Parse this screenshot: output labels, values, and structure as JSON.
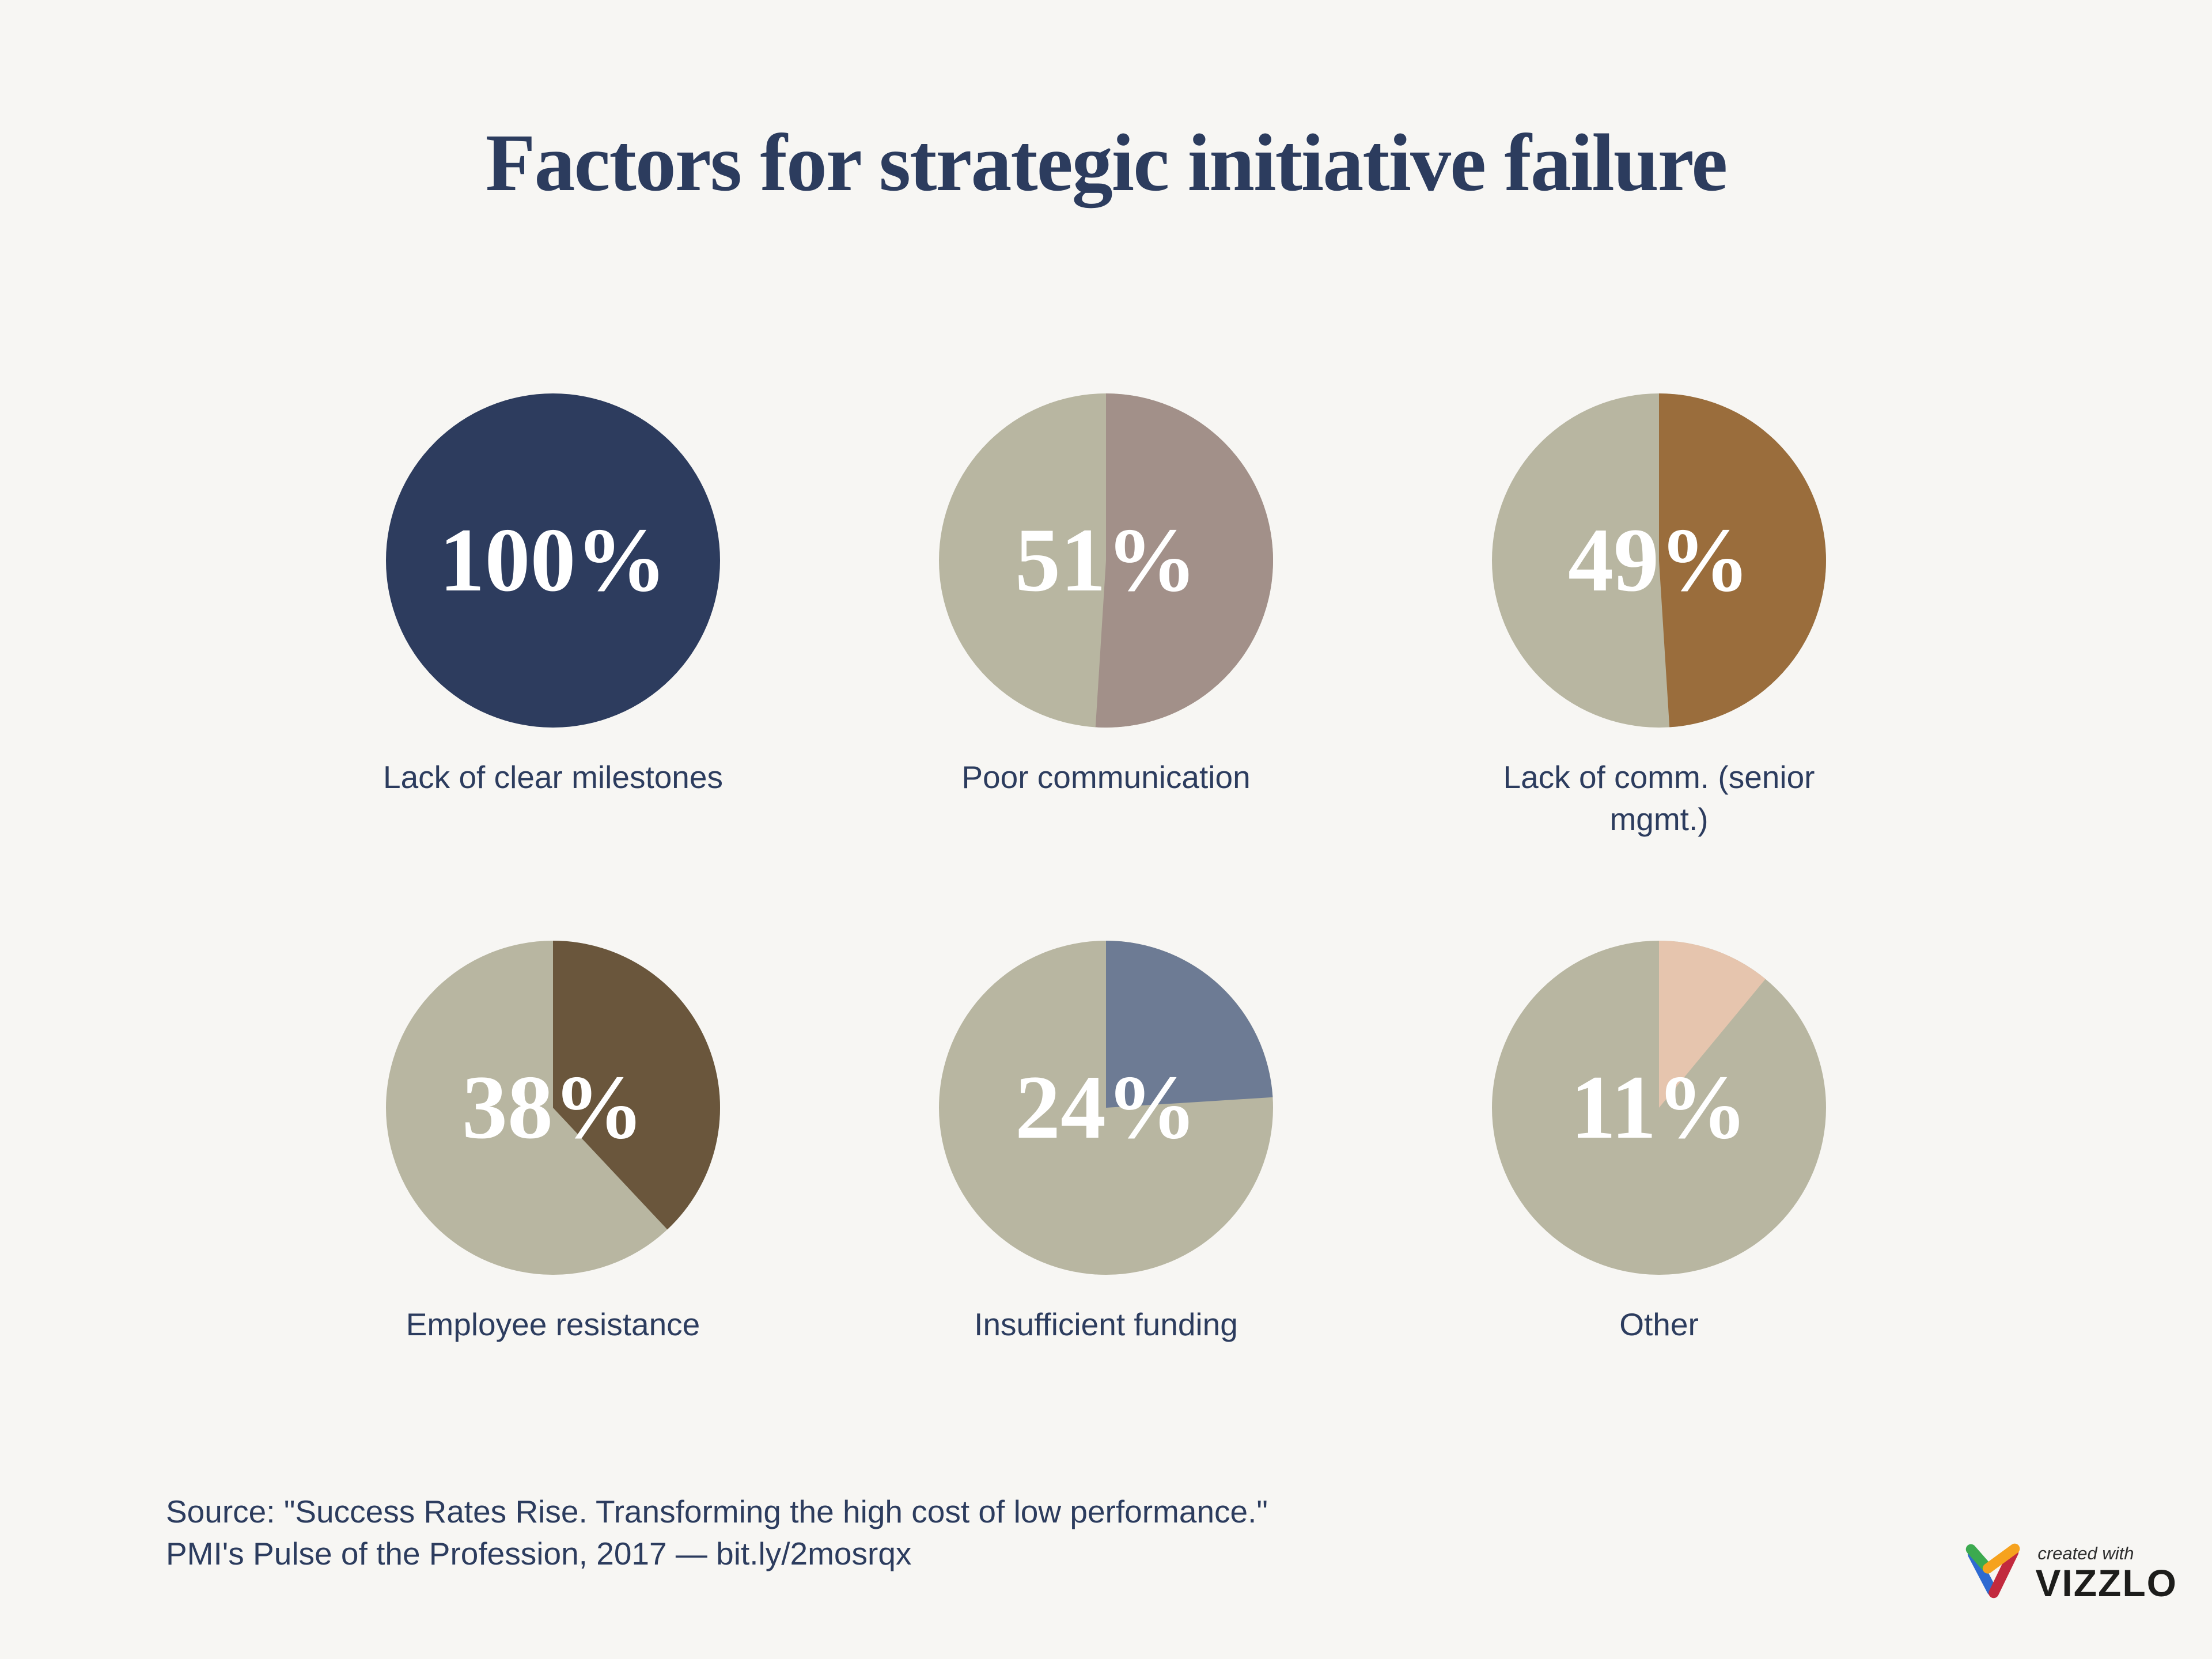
{
  "title": "Factors for strategic initiative failure",
  "chart_data": {
    "type": "pie",
    "layout": {
      "rows": 2,
      "cols": 3,
      "legend": "none",
      "labels_inside": true
    },
    "remainder_color": "#b8b6a1",
    "value_suffix": "%",
    "items": [
      {
        "category": "Lack of clear milestones",
        "value": 100,
        "label": "100%",
        "color": "#2d3c5e"
      },
      {
        "category": "Poor communication",
        "value": 51,
        "label": "51%",
        "color": "#a29089"
      },
      {
        "category": "Lack of comm. (senior mgmt.)",
        "value": 49,
        "label": "49%",
        "color": "#9a6d3c"
      },
      {
        "category": "Employee resistance",
        "value": 38,
        "label": "38%",
        "color": "#6a563c"
      },
      {
        "category": "Insufficient funding",
        "value": 24,
        "label": "24%",
        "color": "#6d7b94"
      },
      {
        "category": "Other",
        "value": 11,
        "label": "11%",
        "color": "#e6c5ae"
      }
    ]
  },
  "source": {
    "line1": "Source: \"Success Rates Rise. Transforming the high cost of low performance.\"",
    "line2": "PMI's Pulse of the Profession, 2017 —  bit.ly/2mosrqx"
  },
  "branding": {
    "created_with": "created with",
    "brand": "VIZZLO",
    "logo_colors": {
      "green": "#3caa4f",
      "orange": "#f6a21e",
      "blue": "#2e6ad1",
      "red": "#c22a3e"
    }
  },
  "colors": {
    "background": "#f7f6f3",
    "text": "#2c3c5e",
    "percent_text": "#ffffff"
  }
}
